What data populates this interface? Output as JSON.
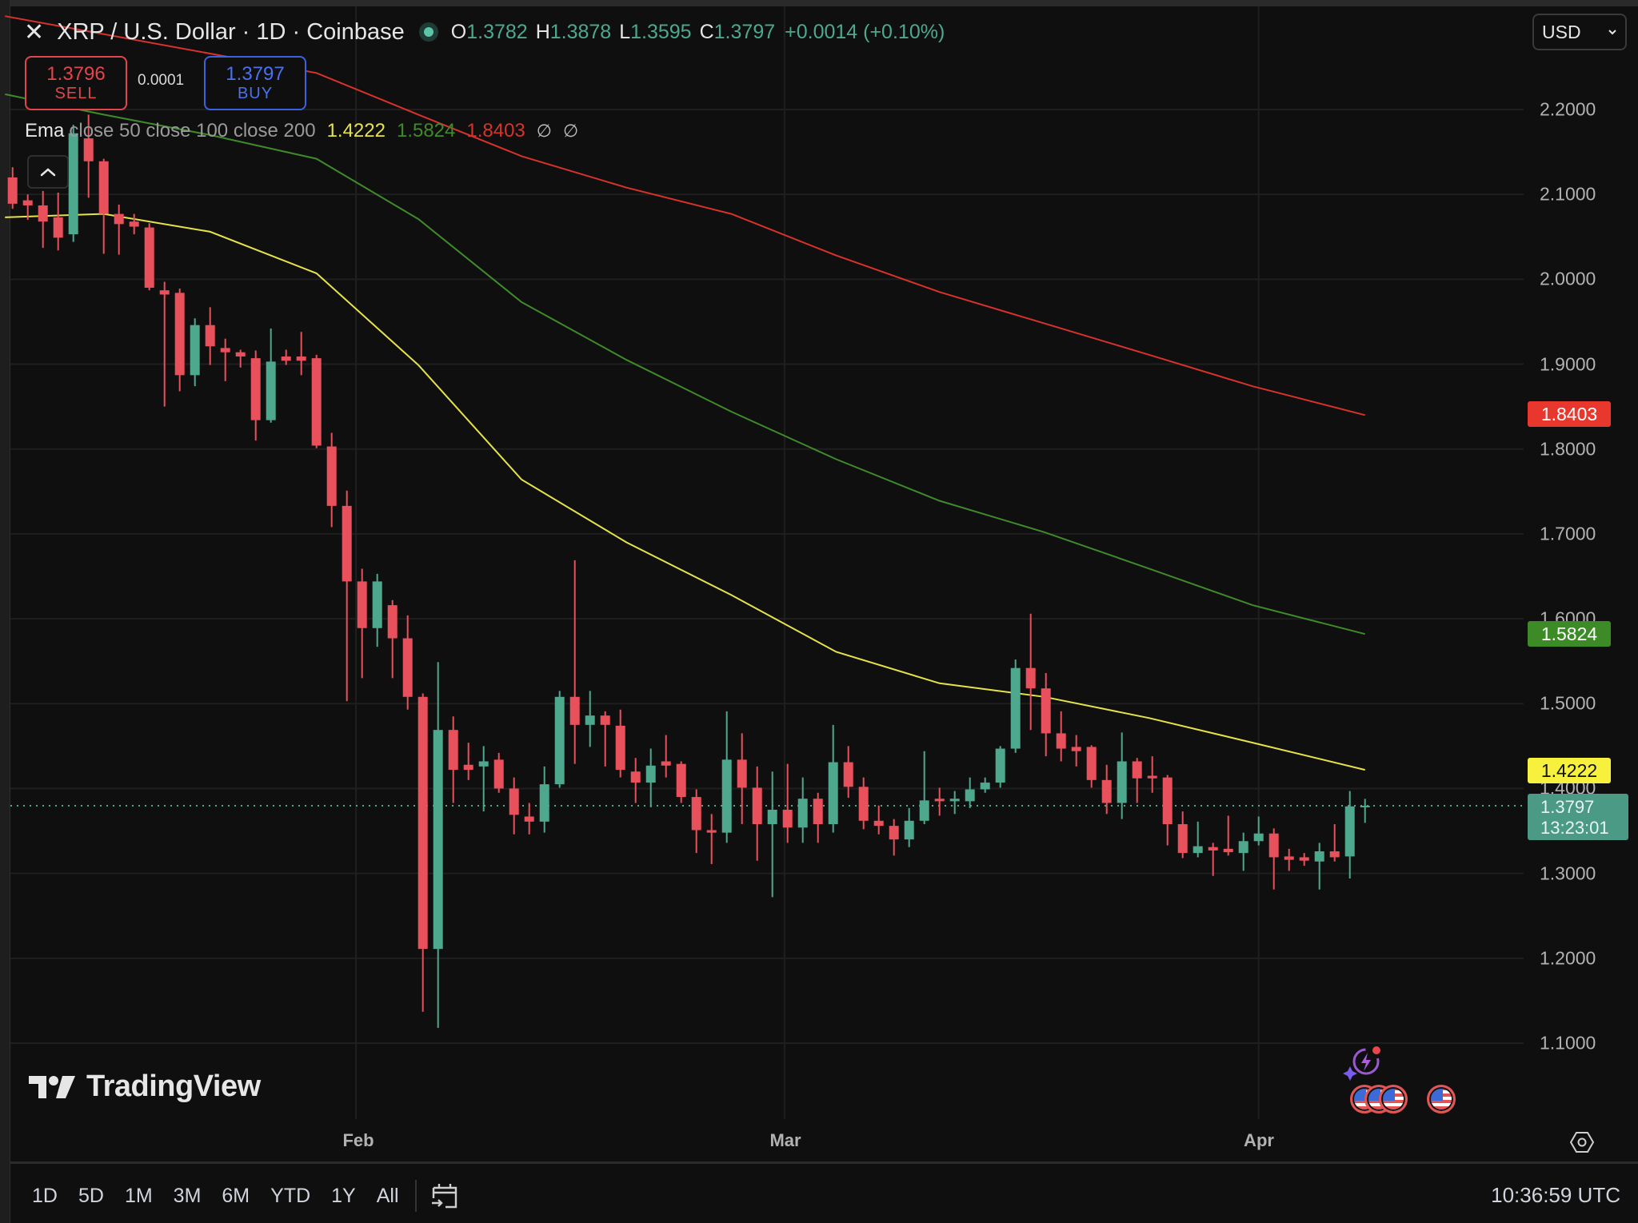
{
  "header": {
    "title": "XRP / U.S. Dollar · 1D · Coinbase",
    "close_icon": "✕",
    "ohlc": {
      "o_label": "O",
      "o": "1.3782",
      "h_label": "H",
      "h": "1.3878",
      "l_label": "L",
      "l": "1.3595",
      "c_label": "C",
      "c": "1.3797",
      "change": "+0.0014 (+0.10%)"
    }
  },
  "trade": {
    "sell_price": "1.3796",
    "sell_label": "SELL",
    "spread": "0.0001",
    "buy_price": "1.3797",
    "buy_label": "BUY"
  },
  "indicator": {
    "name": "Ema",
    "args": "close 50 close 100 close 200",
    "values": [
      "1.4222",
      "1.5824",
      "1.8403"
    ],
    "icons": [
      "∅",
      "∅"
    ]
  },
  "currency": {
    "selected": "USD"
  },
  "price_axis": {
    "labels": [
      "2.2000",
      "2.1000",
      "2.0000",
      "1.9000",
      "1.8000",
      "1.7000",
      "1.6000",
      "1.5000",
      "1.4000",
      "1.3000",
      "1.2000",
      "1.1000"
    ]
  },
  "badges": {
    "ema200": "1.8403",
    "ema100": "1.5824",
    "ema50": "1.4222",
    "last_price": "1.3797",
    "countdown": "13:23:01"
  },
  "time_axis": {
    "labels": [
      "Feb",
      "Mar",
      "Apr"
    ]
  },
  "range_buttons": [
    "1D",
    "5D",
    "1M",
    "3M",
    "6M",
    "YTD",
    "1Y",
    "All"
  ],
  "clock": "10:36:59 UTC",
  "logo_text": "TradingView",
  "colors": {
    "up": "#4ea88e",
    "down": "#e8505b",
    "ema50": "#e6e34a",
    "ema100": "#3f8a2b",
    "ema200": "#d8322c",
    "badge_ema200": "#e8382e",
    "badge_ema100": "#3d8b27",
    "badge_ema50": "#f7f03c",
    "badge_last": "#4a9a86",
    "grid": "#1f1f1f",
    "sell": "#e0474c",
    "buy": "#3d62e0"
  },
  "chart_data": {
    "type": "candlestick",
    "title": "XRP / U.S. Dollar · 1D · Coinbase",
    "xlabel": "",
    "ylabel": "USD",
    "ylim": [
      1.1,
      2.2
    ],
    "y_ticks": [
      2.2,
      2.1,
      2.0,
      1.9,
      1.8,
      1.7,
      1.6,
      1.5,
      1.4,
      1.3,
      1.2,
      1.1
    ],
    "x_tick_labels": [
      {
        "label": "Feb",
        "index": 22.6
      },
      {
        "label": "Mar",
        "index": 50.8
      },
      {
        "label": "Apr",
        "index": 82.0
      }
    ],
    "grid": true,
    "legend": [
      "EMA 50 (1.4222)",
      "EMA 100 (1.5824)",
      "EMA 200 (1.8403)"
    ],
    "candles_ohlc": [
      [
        2.12,
        2.132,
        2.083,
        2.089
      ],
      [
        2.093,
        2.1,
        2.07,
        2.087
      ],
      [
        2.087,
        2.104,
        2.037,
        2.068
      ],
      [
        2.073,
        2.102,
        2.034,
        2.049
      ],
      [
        2.053,
        2.182,
        2.044,
        2.172
      ],
      [
        2.166,
        2.194,
        2.096,
        2.139
      ],
      [
        2.139,
        2.142,
        2.03,
        2.077
      ],
      [
        2.077,
        2.088,
        2.029,
        2.065
      ],
      [
        2.068,
        2.077,
        2.053,
        2.062
      ],
      [
        2.061,
        2.066,
        1.987,
        1.99
      ],
      [
        1.987,
        1.997,
        1.85,
        1.982
      ],
      [
        1.984,
        1.989,
        1.868,
        1.887
      ],
      [
        1.887,
        1.954,
        1.874,
        1.946
      ],
      [
        1.946,
        1.967,
        1.899,
        1.921
      ],
      [
        1.919,
        1.93,
        1.88,
        1.914
      ],
      [
        1.914,
        1.917,
        1.896,
        1.909
      ],
      [
        1.907,
        1.916,
        1.81,
        1.834
      ],
      [
        1.834,
        1.942,
        1.831,
        1.903
      ],
      [
        1.909,
        1.917,
        1.899,
        1.904
      ],
      [
        1.909,
        1.938,
        1.887,
        1.904
      ],
      [
        1.907,
        1.911,
        1.801,
        1.804
      ],
      [
        1.803,
        1.819,
        1.708,
        1.733
      ],
      [
        1.733,
        1.751,
        1.503,
        1.644
      ],
      [
        1.644,
        1.659,
        1.53,
        1.589
      ],
      [
        1.589,
        1.653,
        1.567,
        1.644
      ],
      [
        1.616,
        1.622,
        1.53,
        1.577
      ],
      [
        1.577,
        1.604,
        1.493,
        1.508
      ],
      [
        1.508,
        1.512,
        1.137,
        1.211
      ],
      [
        1.211,
        1.549,
        1.118,
        1.469
      ],
      [
        1.469,
        1.485,
        1.383,
        1.422
      ],
      [
        1.428,
        1.454,
        1.41,
        1.422
      ],
      [
        1.426,
        1.45,
        1.373,
        1.432
      ],
      [
        1.434,
        1.442,
        1.395,
        1.4
      ],
      [
        1.4,
        1.413,
        1.346,
        1.369
      ],
      [
        1.367,
        1.383,
        1.346,
        1.361
      ],
      [
        1.361,
        1.426,
        1.348,
        1.405
      ],
      [
        1.405,
        1.515,
        1.401,
        1.508
      ],
      [
        1.508,
        1.669,
        1.429,
        1.475
      ],
      [
        1.475,
        1.515,
        1.449,
        1.486
      ],
      [
        1.486,
        1.491,
        1.426,
        1.475
      ],
      [
        1.474,
        1.493,
        1.413,
        1.422
      ],
      [
        1.42,
        1.436,
        1.383,
        1.407
      ],
      [
        1.407,
        1.447,
        1.378,
        1.427
      ],
      [
        1.432,
        1.463,
        1.413,
        1.427
      ],
      [
        1.429,
        1.432,
        1.383,
        1.39
      ],
      [
        1.39,
        1.399,
        1.324,
        1.351
      ],
      [
        1.351,
        1.37,
        1.311,
        1.348
      ],
      [
        1.348,
        1.491,
        1.336,
        1.434
      ],
      [
        1.434,
        1.465,
        1.358,
        1.401
      ],
      [
        1.401,
        1.426,
        1.315,
        1.358
      ],
      [
        1.358,
        1.42,
        1.272,
        1.375
      ],
      [
        1.375,
        1.429,
        1.336,
        1.354
      ],
      [
        1.354,
        1.413,
        1.336,
        1.388
      ],
      [
        1.388,
        1.395,
        1.336,
        1.358
      ],
      [
        1.358,
        1.475,
        1.348,
        1.431
      ],
      [
        1.431,
        1.45,
        1.389,
        1.402
      ],
      [
        1.402,
        1.413,
        1.352,
        1.362
      ],
      [
        1.362,
        1.38,
        1.346,
        1.356
      ],
      [
        1.356,
        1.364,
        1.321,
        1.34
      ],
      [
        1.34,
        1.377,
        1.331,
        1.362
      ],
      [
        1.362,
        1.444,
        1.358,
        1.386
      ],
      [
        1.388,
        1.401,
        1.368,
        1.385
      ],
      [
        1.385,
        1.397,
        1.37,
        1.388
      ],
      [
        1.385,
        1.413,
        1.377,
        1.399
      ],
      [
        1.399,
        1.413,
        1.395,
        1.407
      ],
      [
        1.407,
        1.45,
        1.401,
        1.447
      ],
      [
        1.447,
        1.552,
        1.442,
        1.542
      ],
      [
        1.542,
        1.606,
        1.469,
        1.518
      ],
      [
        1.518,
        1.536,
        1.438,
        1.465
      ],
      [
        1.465,
        1.491,
        1.432,
        1.447
      ],
      [
        1.449,
        1.463,
        1.426,
        1.444
      ],
      [
        1.449,
        1.451,
        1.401,
        1.41
      ],
      [
        1.41,
        1.428,
        1.37,
        1.383
      ],
      [
        1.383,
        1.466,
        1.364,
        1.432
      ],
      [
        1.432,
        1.436,
        1.383,
        1.412
      ],
      [
        1.415,
        1.438,
        1.395,
        1.412
      ],
      [
        1.413,
        1.416,
        1.333,
        1.358
      ],
      [
        1.358,
        1.373,
        1.318,
        1.324
      ],
      [
        1.324,
        1.361,
        1.319,
        1.332
      ],
      [
        1.331,
        1.336,
        1.297,
        1.327
      ],
      [
        1.329,
        1.368,
        1.321,
        1.325
      ],
      [
        1.324,
        1.348,
        1.303,
        1.338
      ],
      [
        1.338,
        1.367,
        1.333,
        1.347
      ],
      [
        1.347,
        1.353,
        1.281,
        1.319
      ],
      [
        1.32,
        1.329,
        1.303,
        1.316
      ],
      [
        1.319,
        1.324,
        1.309,
        1.315
      ],
      [
        1.314,
        1.336,
        1.281,
        1.326
      ],
      [
        1.326,
        1.358,
        1.314,
        1.319
      ],
      [
        1.32,
        1.397,
        1.294,
        1.379
      ],
      [
        1.3782,
        1.3878,
        1.3595,
        1.3797
      ]
    ],
    "series": [
      {
        "name": "EMA 50",
        "color": "#e6e34a",
        "points": [
          [
            -0.5,
            2.073
          ],
          [
            6,
            2.077
          ],
          [
            13,
            2.056
          ],
          [
            20,
            2.007
          ],
          [
            26.7,
            1.899
          ],
          [
            33.5,
            1.764
          ],
          [
            40.4,
            1.69
          ],
          [
            47.3,
            1.628
          ],
          [
            54.2,
            1.561
          ],
          [
            61,
            1.524
          ],
          [
            67.9,
            1.508
          ],
          [
            74.8,
            1.483
          ],
          [
            81.6,
            1.454
          ],
          [
            89,
            1.422
          ]
        ]
      },
      {
        "name": "EMA 100",
        "color": "#3f8a2b",
        "points": [
          [
            -0.5,
            2.218
          ],
          [
            6,
            2.194
          ],
          [
            13,
            2.17
          ],
          [
            20,
            2.142
          ],
          [
            26.7,
            2.071
          ],
          [
            33.5,
            1.973
          ],
          [
            40.4,
            1.905
          ],
          [
            47.3,
            1.844
          ],
          [
            54.2,
            1.788
          ],
          [
            61,
            1.739
          ],
          [
            67.9,
            1.702
          ],
          [
            74.8,
            1.659
          ],
          [
            81.6,
            1.616
          ],
          [
            89,
            1.582
          ]
        ]
      },
      {
        "name": "EMA 200",
        "color": "#d8322c",
        "points": [
          [
            -0.5,
            2.31
          ],
          [
            20,
            2.243
          ],
          [
            26.7,
            2.194
          ],
          [
            33.5,
            2.145
          ],
          [
            40.4,
            2.108
          ],
          [
            47.3,
            2.077
          ],
          [
            54.2,
            2.028
          ],
          [
            61,
            1.985
          ],
          [
            67.9,
            1.948
          ],
          [
            74.8,
            1.911
          ],
          [
            81.6,
            1.874
          ],
          [
            89,
            1.84
          ]
        ]
      }
    ],
    "last_price": 1.3797
  }
}
